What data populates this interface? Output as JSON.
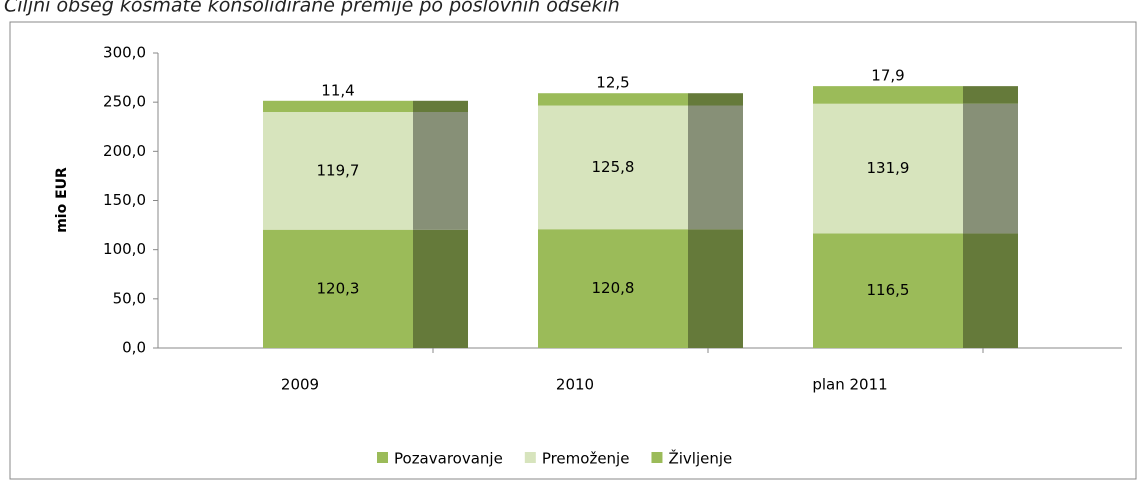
{
  "chart_data": {
    "type": "stacked_bar",
    "title": "Ciljni obseg kosmate konsolidirane premije po poslovnih odsekih",
    "y_label": "mio EUR",
    "categories": [
      "2009",
      "2010",
      "plan 2011"
    ],
    "series": [
      {
        "name": "Pozavarovanje",
        "color": "#9bbb59",
        "values": [
          120.3,
          120.8,
          116.5
        ],
        "value_labels": [
          "120,3",
          "120,8",
          "116,5"
        ]
      },
      {
        "name": "Premoženje",
        "color": "#d7e4bd",
        "values": [
          119.7,
          125.8,
          131.9
        ],
        "value_labels": [
          "119,7",
          "125,8",
          "131,9"
        ]
      },
      {
        "name": "Življenje",
        "color": "#9bbb59",
        "values": [
          11.4,
          12.5,
          17.9
        ],
        "value_labels": [
          "11,4",
          "12,5",
          "17,9"
        ]
      }
    ],
    "ylim": [
      0,
      300
    ],
    "yticks": [
      {
        "value": 0,
        "label": "0,0"
      },
      {
        "value": 50,
        "label": "50,0"
      },
      {
        "value": 100,
        "label": "100,0"
      },
      {
        "value": 150,
        "label": "150,0"
      },
      {
        "value": 200,
        "label": "200,0"
      },
      {
        "value": 250,
        "label": "250,0"
      },
      {
        "value": 300,
        "label": "300,0"
      }
    ],
    "legend": "bottom"
  }
}
